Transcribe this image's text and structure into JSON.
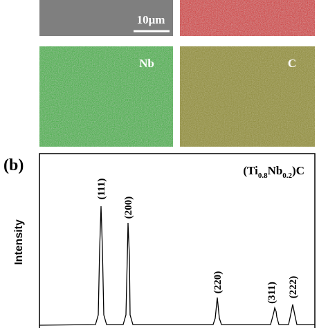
{
  "maps": {
    "scale_bar": "10μm",
    "labels": [
      "Nb",
      "C"
    ]
  },
  "xrd": {
    "panel_label": "(b)",
    "y_label": "Intensity",
    "title_parts": [
      "(Ti",
      "0.8",
      "Nb",
      "0.2",
      ")C"
    ],
    "peaks": [
      "(111)",
      "(200)",
      "(220)",
      "(311)",
      "(222)"
    ]
  }
}
